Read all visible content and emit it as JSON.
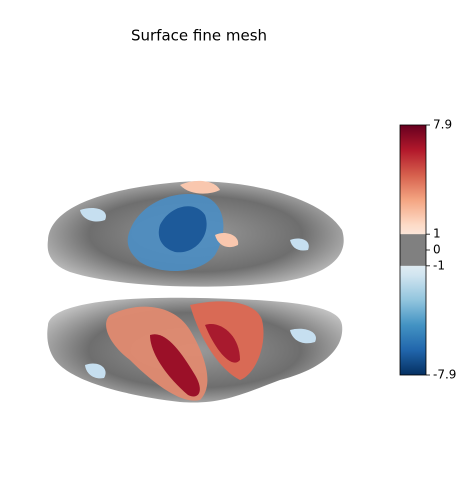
{
  "chart_data": {
    "type": "surface",
    "title": "Surface fine mesh",
    "colorbar": {
      "lim": [
        -7.9,
        7.9
      ],
      "ticks": [
        7.9,
        1,
        0,
        -1,
        -7.9
      ],
      "threshold": 1,
      "threshold_color": "#808080",
      "colors": [
        "#053061",
        "#2166ac",
        "#4393c3",
        "#92c5de",
        "#d1e5f0",
        "#f7f7f7",
        "#fddbc7",
        "#f4a582",
        "#d6604d",
        "#b2182b",
        "#67001f"
      ]
    }
  }
}
